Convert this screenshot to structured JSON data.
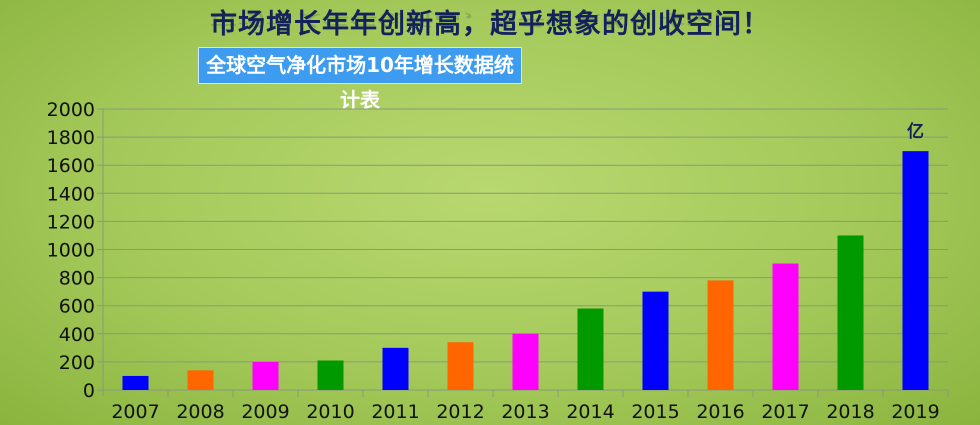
{
  "headline": "市场增长年年创新高，超乎想象的创收空间！",
  "chart_data": {
    "type": "bar",
    "title": "全球空气净化市场10年增长数据统计表",
    "unit_label": "亿",
    "categories": [
      "2007",
      "2008",
      "2009",
      "2010",
      "2011",
      "2012",
      "2013",
      "2014",
      "2015",
      "2016",
      "2017",
      "2018",
      "2019"
    ],
    "values": [
      100,
      140,
      200,
      210,
      300,
      340,
      400,
      580,
      700,
      780,
      900,
      1100,
      1700
    ],
    "colors": [
      "#0000ff",
      "#ff6600",
      "#ff00ff",
      "#009900",
      "#0000ff",
      "#ff6600",
      "#ff00ff",
      "#009900",
      "#0000ff",
      "#ff6600",
      "#ff00ff",
      "#009900",
      "#0000ff"
    ],
    "ylim": [
      0,
      2000
    ],
    "yticks": [
      0,
      200,
      400,
      600,
      800,
      1000,
      1200,
      1400,
      1600,
      1800,
      2000
    ],
    "grid": true,
    "legend": "none"
  }
}
